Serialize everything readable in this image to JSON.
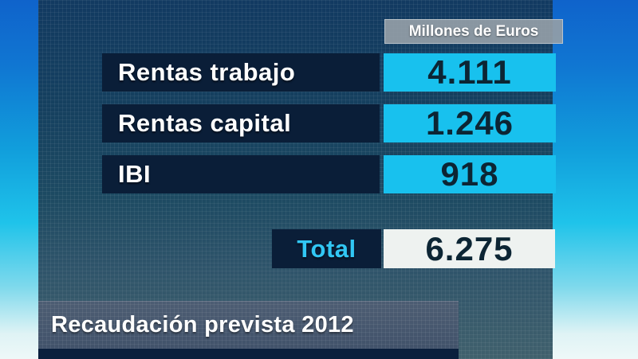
{
  "colors": {
    "accent_cyan": "#18c1ee",
    "label_box_navy": "#0a1e38",
    "value_text_navy": "#0c2534",
    "total_label_cyan": "#31c7f4",
    "total_value_bg": "#eef2f0",
    "unit_header_gray": "#949ea7",
    "caption_bg_slate": "#46566b",
    "bottom_band_navy": "#0a1f3d",
    "background_top_blue": "#0f63cb",
    "background_bottom": "#eef8f8"
  },
  "table": {
    "unit_header": "Millones de Euros",
    "rows": [
      {
        "label": "Rentas trabajo",
        "value": "4.111"
      },
      {
        "label": "Rentas capital",
        "value": "1.246"
      },
      {
        "label": "IBI",
        "value": "918"
      }
    ],
    "total": {
      "label": "Total",
      "value": "6.275"
    }
  },
  "caption": "Recaudación prevista 2012",
  "chart_data": {
    "type": "table",
    "title": "Recaudación prevista 2012",
    "unit": "Millones de Euros",
    "categories": [
      "Rentas trabajo",
      "Rentas capital",
      "IBI"
    ],
    "values": [
      4111,
      1246,
      918
    ],
    "total": 6275,
    "notes": "TV news full-screen graphic; expected revenue collection for 2012 in millions of euros"
  }
}
